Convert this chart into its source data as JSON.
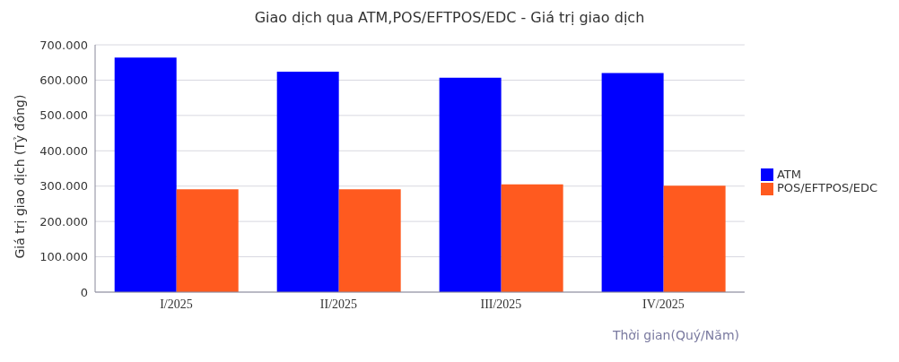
{
  "chart_data": {
    "type": "bar",
    "title": "Giao dịch qua ATM,POS/EFTPOS/EDC - Giá trị giao dịch",
    "xlabel": "Thời gian(Quý/Năm)",
    "ylabel": "Giá trị giao dịch (Tỷ đồng)",
    "categories": [
      "I/2025",
      "II/2025",
      "III/2025",
      "IV/2025"
    ],
    "series": [
      {
        "name": "ATM",
        "color": "#0000ff",
        "values": [
          664000,
          624000,
          607000,
          620000
        ]
      },
      {
        "name": "POS/EFTPOS/EDC",
        "color": "#ff5a1f",
        "values": [
          291000,
          291000,
          305000,
          301000
        ]
      }
    ],
    "ylim": [
      0,
      700000
    ],
    "yticks": [
      {
        "value": 0,
        "label": "0"
      },
      {
        "value": 100000,
        "label": "100.000"
      },
      {
        "value": 200000,
        "label": "200.000"
      },
      {
        "value": 300000,
        "label": "300.000"
      },
      {
        "value": 400000,
        "label": "400.000"
      },
      {
        "value": 500000,
        "label": "500.000"
      },
      {
        "value": 600000,
        "label": "600.000"
      },
      {
        "value": 700000,
        "label": "700.000"
      }
    ],
    "grid": "y",
    "legend": "right"
  }
}
